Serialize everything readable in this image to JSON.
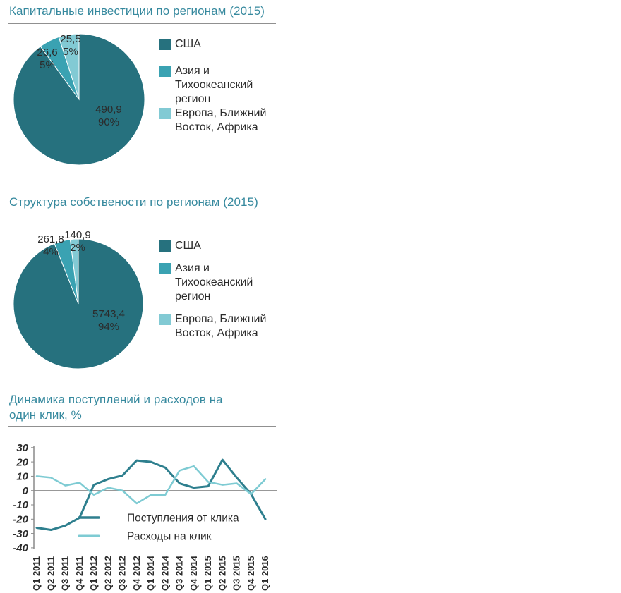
{
  "page": {
    "background": "#ffffff"
  },
  "colors": {
    "title_teal": "#36899e",
    "text": "#2b2b2b",
    "divider": "#909090",
    "axis_gray": "#8a8a8a",
    "pie_dark": "#26717e",
    "pie_mid": "#3aa2b2",
    "pie_light": "#82cad4",
    "line_dark": "#2e7f8e",
    "line_light": "#7ecbd3"
  },
  "chart_data": [
    {
      "type": "pie",
      "title": "Капитальные инвестиции по регионам (2015)",
      "colors": [
        "#26717e",
        "#3aa2b2",
        "#82cad4"
      ],
      "slices": [
        {
          "label": "США",
          "value": 490.9,
          "value_label": "490,9",
          "pct": 90,
          "pct_label": "90%"
        },
        {
          "label": "Азия и Тихоокеанский регион",
          "value": 26.6,
          "value_label": "26,6",
          "pct": 5,
          "pct_label": "5%"
        },
        {
          "label": "Европа, Ближний Восток, Африка",
          "value": 25.5,
          "value_label": "25,5",
          "pct": 5,
          "pct_label": "5%"
        }
      ],
      "legend": [
        {
          "lines": [
            "США"
          ]
        },
        {
          "lines": [
            "Азия и",
            "Тихоокеанский",
            "регион"
          ]
        },
        {
          "lines": [
            "Европа, Ближний",
            "Восток, Африка"
          ]
        }
      ]
    },
    {
      "type": "pie",
      "title": "Структура собствености по регионам (2015)",
      "colors": [
        "#26717e",
        "#3aa2b2",
        "#82cad4"
      ],
      "slices": [
        {
          "label": "США",
          "value": 5743.4,
          "value_label": "5743,4",
          "pct": 94,
          "pct_label": "94%"
        },
        {
          "label": "Азия и Тихоокеанский регион",
          "value": 261.8,
          "value_label": "261,8",
          "pct": 4,
          "pct_label": "4%"
        },
        {
          "label": "Европа, Ближний Восток, Африка",
          "value": 140.9,
          "value_label": "140,9",
          "pct": 2,
          "pct_label": "2%"
        }
      ],
      "legend": [
        {
          "lines": [
            "США"
          ]
        },
        {
          "lines": [
            "Азия и",
            "Тихоокеанский",
            "регион"
          ]
        },
        {
          "lines": [
            "Европа, Ближний",
            "Восток, Африка"
          ]
        }
      ]
    },
    {
      "type": "line",
      "title_lines": [
        "Динамика поступлений и расходов на",
        "один клик, %"
      ],
      "ylim": [
        -40,
        30
      ],
      "y_ticks": [
        30,
        20,
        10,
        0,
        -10,
        -20,
        -30,
        -40
      ],
      "grid": "zero-line-only",
      "legend_position": "inside-bottom",
      "x_labels": [
        "Q1 2011",
        "Q2 2011",
        "Q3 2011",
        "Q4 2011",
        "Q1 2012",
        "Q2 2012",
        "Q3 2012",
        "Q4 2012",
        "Q1 2014",
        "Q2 2014",
        "Q3 2014",
        "Q4 2014",
        "Q1 2015",
        "Q2 2015",
        "Q3 2015",
        "Q4 2015",
        "Q1 2016"
      ],
      "series": [
        {
          "name": "Поступления от клика",
          "color": "#2e7f8e",
          "values": [
            -26,
            -27.5,
            -24.5,
            -19,
            4,
            8,
            10.5,
            21,
            20,
            16,
            5,
            2,
            3,
            21.5,
            9,
            -2.5,
            -20
          ]
        },
        {
          "name": "Расходы на клик",
          "color": "#7ecbd3",
          "values": [
            10,
            9,
            3.5,
            5.5,
            -3,
            2,
            0,
            -9,
            -3,
            -3,
            14,
            17,
            6,
            4,
            5,
            -2.5,
            8
          ]
        }
      ]
    }
  ]
}
